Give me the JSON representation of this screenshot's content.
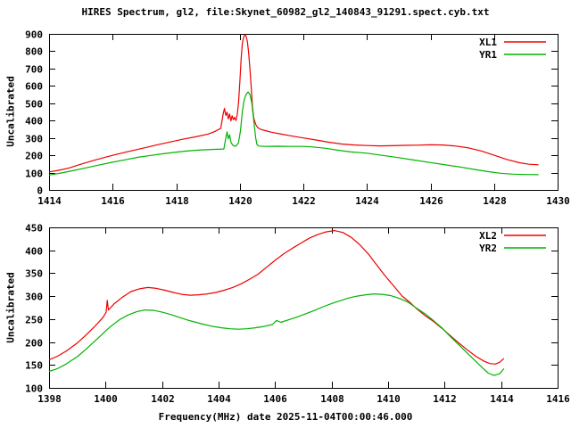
{
  "title": "HIRES Spectrum, gl2, file:Skynet_60982_gl2_140843_91291.spect.cyb.txt",
  "colors": {
    "background": "#ffffff",
    "frame": "#000000",
    "text": "#000000",
    "series_red": "#ee0000",
    "series_green": "#00b400"
  },
  "chart_data": [
    {
      "type": "line",
      "title": "",
      "ylabel": "Uncalibrated",
      "xlabel": "",
      "xlim": [
        1414,
        1430
      ],
      "ylim": [
        0,
        900
      ],
      "xticks": [
        1414,
        1416,
        1418,
        1420,
        1422,
        1424,
        1426,
        1428,
        1430
      ],
      "yticks": [
        0,
        100,
        200,
        300,
        400,
        500,
        600,
        700,
        800,
        900
      ],
      "grid": false,
      "legend_position": "top-right",
      "series": [
        {
          "name": "XL1",
          "color": "#ee0000",
          "points": [
            [
              1414.0,
              104
            ],
            [
              1414.3,
              113
            ],
            [
              1414.6,
              125
            ],
            [
              1415.0,
              148
            ],
            [
              1415.4,
              170
            ],
            [
              1415.8,
              190
            ],
            [
              1416.2,
              209
            ],
            [
              1416.6,
              226
            ],
            [
              1417.0,
              243
            ],
            [
              1417.4,
              260
            ],
            [
              1417.8,
              276
            ],
            [
              1418.2,
              292
            ],
            [
              1418.6,
              306
            ],
            [
              1419.0,
              322
            ],
            [
              1419.2,
              336
            ],
            [
              1419.4,
              355
            ],
            [
              1419.48,
              440
            ],
            [
              1419.52,
              470
            ],
            [
              1419.56,
              430
            ],
            [
              1419.6,
              448
            ],
            [
              1419.64,
              410
            ],
            [
              1419.68,
              438
            ],
            [
              1419.72,
              398
            ],
            [
              1419.76,
              428
            ],
            [
              1419.8,
              405
            ],
            [
              1419.84,
              418
            ],
            [
              1419.88,
              400
            ],
            [
              1419.92,
              435
            ],
            [
              1419.96,
              500
            ],
            [
              1420.0,
              620
            ],
            [
              1420.04,
              750
            ],
            [
              1420.08,
              845
            ],
            [
              1420.12,
              880
            ],
            [
              1420.16,
              895
            ],
            [
              1420.2,
              885
            ],
            [
              1420.24,
              855
            ],
            [
              1420.28,
              790
            ],
            [
              1420.32,
              700
            ],
            [
              1420.36,
              590
            ],
            [
              1420.4,
              480
            ],
            [
              1420.44,
              415
            ],
            [
              1420.5,
              378
            ],
            [
              1420.56,
              360
            ],
            [
              1420.65,
              350
            ],
            [
              1420.8,
              342
            ],
            [
              1421.0,
              333
            ],
            [
              1421.3,
              322
            ],
            [
              1421.6,
              312
            ],
            [
              1422.0,
              300
            ],
            [
              1422.4,
              288
            ],
            [
              1422.8,
              275
            ],
            [
              1423.2,
              265
            ],
            [
              1423.6,
              259
            ],
            [
              1424.0,
              256
            ],
            [
              1424.4,
              254
            ],
            [
              1424.8,
              255
            ],
            [
              1425.2,
              257
            ],
            [
              1425.6,
              258
            ],
            [
              1426.0,
              260
            ],
            [
              1426.4,
              259
            ],
            [
              1426.8,
              253
            ],
            [
              1427.2,
              242
            ],
            [
              1427.6,
              225
            ],
            [
              1428.0,
              200
            ],
            [
              1428.4,
              176
            ],
            [
              1428.8,
              157
            ],
            [
              1429.1,
              148
            ],
            [
              1429.4,
              145
            ]
          ]
        },
        {
          "name": "YR1",
          "color": "#00b400",
          "points": [
            [
              1414.0,
              86
            ],
            [
              1414.4,
              98
            ],
            [
              1414.8,
              113
            ],
            [
              1415.2,
              129
            ],
            [
              1415.6,
              145
            ],
            [
              1416.0,
              160
            ],
            [
              1416.4,
              174
            ],
            [
              1416.8,
              188
            ],
            [
              1417.2,
              199
            ],
            [
              1417.6,
              209
            ],
            [
              1418.0,
              218
            ],
            [
              1418.4,
              226
            ],
            [
              1418.8,
              231
            ],
            [
              1419.2,
              234
            ],
            [
              1419.5,
              236
            ],
            [
              1419.56,
              300
            ],
            [
              1419.6,
              335
            ],
            [
              1419.64,
              295
            ],
            [
              1419.68,
              318
            ],
            [
              1419.72,
              275
            ],
            [
              1419.78,
              258
            ],
            [
              1419.84,
              252
            ],
            [
              1419.9,
              256
            ],
            [
              1419.96,
              272
            ],
            [
              1420.02,
              340
            ],
            [
              1420.08,
              450
            ],
            [
              1420.14,
              520
            ],
            [
              1420.2,
              552
            ],
            [
              1420.26,
              565
            ],
            [
              1420.32,
              552
            ],
            [
              1420.38,
              500
            ],
            [
              1420.44,
              400
            ],
            [
              1420.5,
              300
            ],
            [
              1420.54,
              262
            ],
            [
              1420.6,
              253
            ],
            [
              1420.8,
              251
            ],
            [
              1421.2,
              252
            ],
            [
              1421.6,
              251
            ],
            [
              1422.0,
              251
            ],
            [
              1422.3,
              248
            ],
            [
              1422.7,
              240
            ],
            [
              1423.1,
              229
            ],
            [
              1423.5,
              219
            ],
            [
              1424.0,
              212
            ],
            [
              1424.5,
              199
            ],
            [
              1425.0,
              186
            ],
            [
              1425.5,
              172
            ],
            [
              1426.0,
              158
            ],
            [
              1426.5,
              144
            ],
            [
              1427.0,
              130
            ],
            [
              1427.4,
              118
            ],
            [
              1427.8,
              106
            ],
            [
              1428.2,
              96
            ],
            [
              1428.6,
              91
            ],
            [
              1429.0,
              89
            ],
            [
              1429.4,
              88
            ]
          ]
        }
      ]
    },
    {
      "type": "line",
      "title": "",
      "ylabel": "Uncalibrated",
      "xlabel": "Frequency(MHz) date 2025-11-04T00:00:46.000",
      "xlim": [
        1398,
        1416
      ],
      "ylim": [
        100,
        450
      ],
      "xticks": [
        1398,
        1400,
        1402,
        1404,
        1406,
        1408,
        1410,
        1412,
        1414,
        1416
      ],
      "yticks": [
        100,
        150,
        200,
        250,
        300,
        350,
        400,
        450
      ],
      "grid": false,
      "legend_position": "top-right",
      "series": [
        {
          "name": "XL2",
          "color": "#ee0000",
          "points": [
            [
              1398.0,
              161
            ],
            [
              1398.3,
              169
            ],
            [
              1398.6,
              180
            ],
            [
              1399.0,
              198
            ],
            [
              1399.3,
              215
            ],
            [
              1399.6,
              233
            ],
            [
              1399.9,
              253
            ],
            [
              1400.02,
              265
            ],
            [
              1400.06,
              291
            ],
            [
              1400.1,
              270
            ],
            [
              1400.3,
              283
            ],
            [
              1400.6,
              298
            ],
            [
              1400.9,
              310
            ],
            [
              1401.2,
              316
            ],
            [
              1401.5,
              319
            ],
            [
              1401.8,
              317
            ],
            [
              1402.1,
              313
            ],
            [
              1402.4,
              308
            ],
            [
              1402.7,
              304
            ],
            [
              1403.0,
              302
            ],
            [
              1403.3,
              303
            ],
            [
              1403.6,
              305
            ],
            [
              1403.9,
              308
            ],
            [
              1404.2,
              313
            ],
            [
              1404.5,
              319
            ],
            [
              1404.8,
              327
            ],
            [
              1405.1,
              337
            ],
            [
              1405.4,
              348
            ],
            [
              1405.7,
              363
            ],
            [
              1406.0,
              378
            ],
            [
              1406.3,
              392
            ],
            [
              1406.6,
              404
            ],
            [
              1406.9,
              415
            ],
            [
              1407.2,
              426
            ],
            [
              1407.5,
              434
            ],
            [
              1407.8,
              440
            ],
            [
              1408.1,
              443
            ],
            [
              1408.4,
              439
            ],
            [
              1408.7,
              428
            ],
            [
              1409.0,
              412
            ],
            [
              1409.3,
              392
            ],
            [
              1409.6,
              368
            ],
            [
              1409.9,
              344
            ],
            [
              1410.2,
              322
            ],
            [
              1410.5,
              300
            ],
            [
              1410.8,
              285
            ],
            [
              1411.0,
              273
            ],
            [
              1411.3,
              258
            ],
            [
              1411.6,
              245
            ],
            [
              1411.9,
              230
            ],
            [
              1412.2,
              214
            ],
            [
              1412.5,
              198
            ],
            [
              1412.8,
              183
            ],
            [
              1413.1,
              169
            ],
            [
              1413.4,
              158
            ],
            [
              1413.6,
              153
            ],
            [
              1413.8,
              152
            ],
            [
              1413.95,
              156
            ],
            [
              1414.1,
              164
            ]
          ]
        },
        {
          "name": "YR2",
          "color": "#00b400",
          "points": [
            [
              1398.0,
              136
            ],
            [
              1398.3,
              142
            ],
            [
              1398.6,
              152
            ],
            [
              1399.0,
              168
            ],
            [
              1399.3,
              184
            ],
            [
              1399.6,
              201
            ],
            [
              1399.9,
              218
            ],
            [
              1400.05,
              227
            ],
            [
              1400.2,
              235
            ],
            [
              1400.5,
              249
            ],
            [
              1400.8,
              259
            ],
            [
              1401.1,
              266
            ],
            [
              1401.4,
              270
            ],
            [
              1401.7,
              269
            ],
            [
              1402.0,
              265
            ],
            [
              1402.3,
              260
            ],
            [
              1402.6,
              254
            ],
            [
              1402.9,
              248
            ],
            [
              1403.2,
              243
            ],
            [
              1403.5,
              238
            ],
            [
              1403.8,
              234
            ],
            [
              1404.1,
              231
            ],
            [
              1404.4,
              229
            ],
            [
              1404.7,
              228
            ],
            [
              1405.0,
              229
            ],
            [
              1405.3,
              231
            ],
            [
              1405.6,
              234
            ],
            [
              1405.9,
              238
            ],
            [
              1406.05,
              247
            ],
            [
              1406.2,
              243
            ],
            [
              1406.5,
              249
            ],
            [
              1406.8,
              255
            ],
            [
              1407.1,
              262
            ],
            [
              1407.4,
              269
            ],
            [
              1407.7,
              277
            ],
            [
              1408.0,
              284
            ],
            [
              1408.3,
              290
            ],
            [
              1408.6,
              296
            ],
            [
              1408.9,
              300
            ],
            [
              1409.2,
              303
            ],
            [
              1409.5,
              305
            ],
            [
              1409.8,
              304
            ],
            [
              1410.1,
              301
            ],
            [
              1410.4,
              295
            ],
            [
              1410.7,
              287
            ],
            [
              1411.0,
              274
            ],
            [
              1411.3,
              262
            ],
            [
              1411.6,
              247
            ],
            [
              1411.9,
              231
            ],
            [
              1412.2,
              212
            ],
            [
              1412.5,
              194
            ],
            [
              1412.8,
              176
            ],
            [
              1413.1,
              158
            ],
            [
              1413.35,
              143
            ],
            [
              1413.55,
              132
            ],
            [
              1413.75,
              127
            ],
            [
              1413.95,
              131
            ],
            [
              1414.1,
              142
            ]
          ]
        }
      ]
    }
  ]
}
